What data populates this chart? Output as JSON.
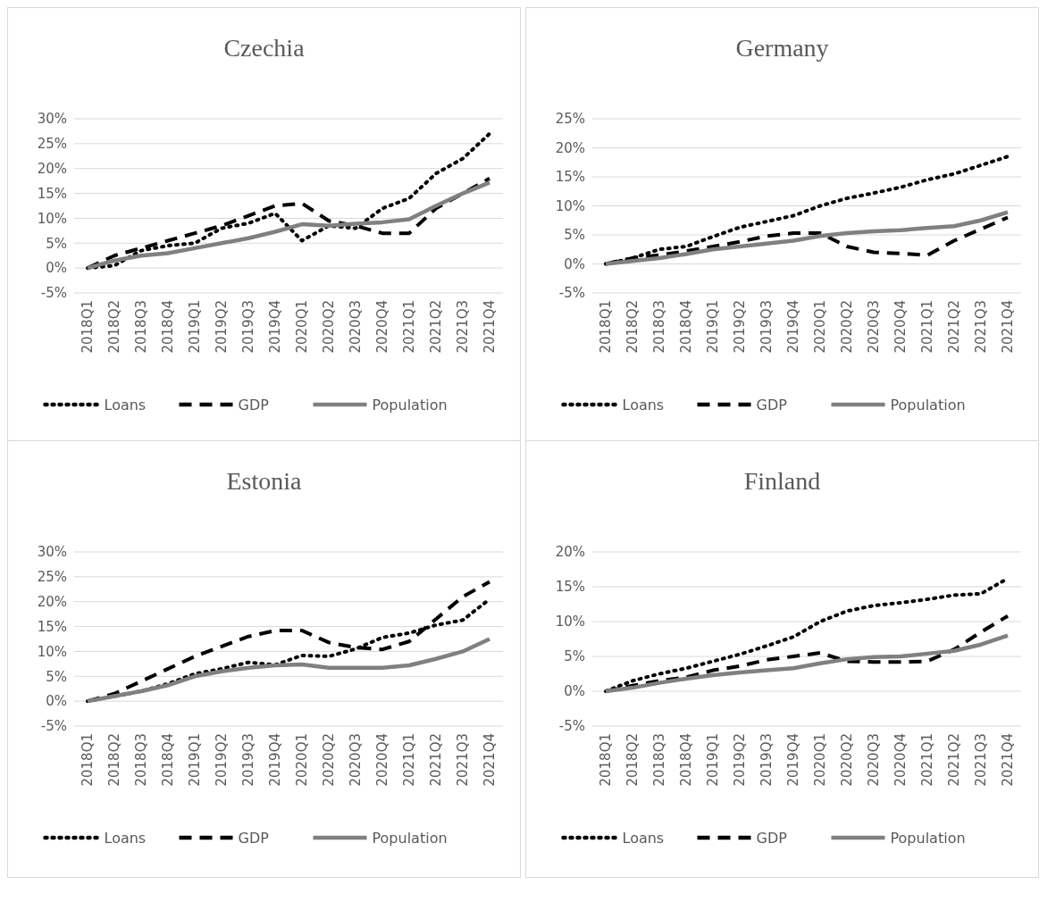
{
  "chart_data": [
    {
      "type": "line",
      "title": "Czechia",
      "categories": [
        "2018Q1",
        "2018Q2",
        "2018Q3",
        "2018Q4",
        "2019Q1",
        "2019Q2",
        "2019Q3",
        "2019Q4",
        "2020Q1",
        "2020Q2",
        "2020Q3",
        "2020Q4",
        "2021Q1",
        "2021Q2",
        "2021Q3",
        "2021Q4"
      ],
      "ylim": [
        -5,
        30
      ],
      "yticks": [
        {
          "value": -5,
          "label": "-5%"
        },
        {
          "value": 0,
          "label": "0%"
        },
        {
          "value": 5,
          "label": "5%"
        },
        {
          "value": 10,
          "label": "10%"
        },
        {
          "value": 15,
          "label": "15%"
        },
        {
          "value": 20,
          "label": "20%"
        },
        {
          "value": 25,
          "label": "25%"
        },
        {
          "value": 30,
          "label": "30%"
        }
      ],
      "grid": "y",
      "legend": "bottom",
      "series": [
        {
          "name": "Loans",
          "color": "#000000",
          "line_style": "dotted",
          "values": [
            0,
            0.5,
            3.5,
            4.5,
            5,
            8,
            9,
            11,
            5.5,
            8.5,
            8,
            12,
            14,
            19,
            22,
            27
          ]
        },
        {
          "name": "GDP",
          "color": "#000000",
          "line_style": "dashed",
          "values": [
            0,
            2.5,
            4,
            5.5,
            7,
            8.5,
            10.5,
            12.5,
            13,
            9.5,
            8.5,
            7,
            7,
            12,
            15,
            18
          ]
        },
        {
          "name": "Population",
          "color": "#808080",
          "line_style": "solid",
          "values": [
            0,
            1.5,
            2.5,
            3,
            4,
            5,
            6,
            7.3,
            8.8,
            8.5,
            8.9,
            9.2,
            9.8,
            12.5,
            15,
            17.2
          ]
        }
      ]
    },
    {
      "type": "line",
      "title": "Germany",
      "categories": [
        "2018Q1",
        "2018Q2",
        "2018Q3",
        "2018Q4",
        "2019Q1",
        "2019Q2",
        "2019Q3",
        "2019Q4",
        "2020Q1",
        "2020Q2",
        "2020Q3",
        "2020Q4",
        "2021Q1",
        "2021Q2",
        "2021Q3",
        "2021Q4"
      ],
      "ylim": [
        -5,
        25
      ],
      "yticks": [
        {
          "value": -5,
          "label": "-5%"
        },
        {
          "value": 0,
          "label": "0%"
        },
        {
          "value": 5,
          "label": "5%"
        },
        {
          "value": 10,
          "label": "10%"
        },
        {
          "value": 15,
          "label": "15%"
        },
        {
          "value": 20,
          "label": "20%"
        },
        {
          "value": 25,
          "label": "25%"
        }
      ],
      "grid": "y",
      "legend": "bottom",
      "series": [
        {
          "name": "Loans",
          "color": "#000000",
          "line_style": "dotted",
          "values": [
            0,
            1,
            2.5,
            3,
            4.7,
            6.3,
            7.3,
            8.3,
            10,
            11.3,
            12.2,
            13.2,
            14.5,
            15.5,
            17,
            18.5
          ]
        },
        {
          "name": "GDP",
          "color": "#000000",
          "line_style": "dashed",
          "values": [
            0,
            1,
            1.5,
            2.2,
            3,
            3.8,
            4.8,
            5.3,
            5.3,
            3,
            2,
            1.8,
            1.5,
            4,
            6,
            8
          ]
        },
        {
          "name": "Population",
          "color": "#808080",
          "line_style": "solid",
          "values": [
            0,
            0.5,
            1,
            1.7,
            2.5,
            3,
            3.5,
            4,
            4.8,
            5.3,
            5.6,
            5.8,
            6.2,
            6.5,
            7.5,
            8.9
          ]
        }
      ]
    },
    {
      "type": "line",
      "title": "Estonia",
      "categories": [
        "2018Q1",
        "2018Q2",
        "2018Q3",
        "2018Q4",
        "2019Q1",
        "2019Q2",
        "2019Q3",
        "2019Q4",
        "2020Q1",
        "2020Q2",
        "2020Q3",
        "2020Q4",
        "2021Q1",
        "2021Q2",
        "2021Q3",
        "2021Q4"
      ],
      "ylim": [
        -5,
        30
      ],
      "yticks": [
        {
          "value": -5,
          "label": "-5%"
        },
        {
          "value": 0,
          "label": "0%"
        },
        {
          "value": 5,
          "label": "5%"
        },
        {
          "value": 10,
          "label": "10%"
        },
        {
          "value": 15,
          "label": "15%"
        },
        {
          "value": 20,
          "label": "20%"
        },
        {
          "value": 25,
          "label": "25%"
        },
        {
          "value": 30,
          "label": "30%"
        }
      ],
      "grid": "y",
      "legend": "bottom",
      "series": [
        {
          "name": "Loans",
          "color": "#000000",
          "line_style": "dotted",
          "values": [
            0,
            1,
            2,
            3.5,
            5.5,
            6.5,
            7.8,
            7.3,
            9.2,
            9,
            10.5,
            12.8,
            13.7,
            15.3,
            16.3,
            20.5
          ]
        },
        {
          "name": "GDP",
          "color": "#000000",
          "line_style": "dashed",
          "values": [
            0,
            1.5,
            4,
            6.5,
            9,
            11,
            13,
            14.2,
            14.2,
            11.8,
            10.8,
            10.4,
            12,
            16.5,
            21,
            24
          ]
        },
        {
          "name": "Population",
          "color": "#808080",
          "line_style": "solid",
          "values": [
            0,
            1,
            2,
            3.2,
            5,
            6,
            6.7,
            7.2,
            7.4,
            6.7,
            6.7,
            6.7,
            7.2,
            8.5,
            10,
            12.5
          ]
        }
      ]
    },
    {
      "type": "line",
      "title": "Finland",
      "categories": [
        "2018Q1",
        "2018Q2",
        "2018Q3",
        "2018Q4",
        "2019Q1",
        "2019Q2",
        "2019Q3",
        "2019Q4",
        "2020Q1",
        "2020Q2",
        "2020Q3",
        "2020Q4",
        "2021Q1",
        "2021Q2",
        "2021Q3",
        "2021Q4"
      ],
      "ylim": [
        -5,
        20
      ],
      "yticks": [
        {
          "value": -5,
          "label": "-5%"
        },
        {
          "value": 0,
          "label": "0%"
        },
        {
          "value": 5,
          "label": "5%"
        },
        {
          "value": 10,
          "label": "10%"
        },
        {
          "value": 15,
          "label": "15%"
        },
        {
          "value": 20,
          "label": "20%"
        }
      ],
      "grid": "y",
      "legend": "bottom",
      "series": [
        {
          "name": "Loans",
          "color": "#000000",
          "line_style": "dotted",
          "values": [
            0,
            1.5,
            2.5,
            3.3,
            4.3,
            5.3,
            6.5,
            7.8,
            10,
            11.5,
            12.3,
            12.7,
            13.2,
            13.8,
            14,
            16.2
          ]
        },
        {
          "name": "GDP",
          "color": "#000000",
          "line_style": "dashed",
          "values": [
            0,
            0.8,
            1.5,
            2,
            3,
            3.6,
            4.5,
            5,
            5.5,
            4.3,
            4.2,
            4.2,
            4.3,
            6,
            8.5,
            10.8
          ]
        },
        {
          "name": "Population",
          "color": "#808080",
          "line_style": "solid",
          "values": [
            0,
            0.5,
            1.2,
            1.8,
            2.3,
            2.7,
            3,
            3.3,
            4,
            4.6,
            4.9,
            5,
            5.4,
            5.8,
            6.7,
            8
          ]
        }
      ]
    }
  ]
}
